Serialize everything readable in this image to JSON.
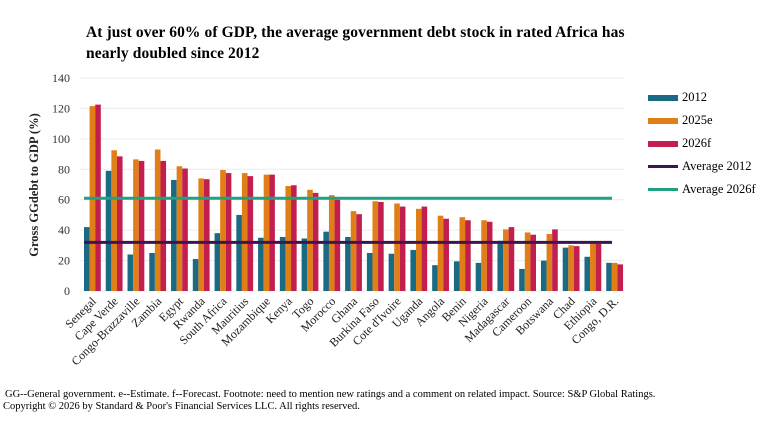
{
  "title": "At just over 60% of GDP, the average  government  debt stock  in rated Africa has nearly doubled  since  2012",
  "footnote": "GG--General government.  e--Estimate.  f--Forecast.  Footnote:  need to mention new ratings and a comment  on related  impact.  Source:  S&P Global Ratings.",
  "copyright": "Copyright © 2026 by Standard  & Poor's Financial Services LLC. All rights reserved.",
  "colors": {
    "s2012": "#1b6a84",
    "s2025e": "#e07f17",
    "s2026f": "#c21f4f",
    "avg2012": "#3d1650",
    "avg2026f": "#1fa182",
    "grid": "#ececec"
  },
  "chart_data": {
    "type": "bar",
    "title": "At just over 60% of GDP, the average government debt stock in rated Africa has nearly doubled since 2012",
    "xlabel": "",
    "ylabel": "Gross GGdebt to GDP (%)",
    "ylim": [
      0,
      140
    ],
    "yticks": [
      0,
      20,
      40,
      60,
      80,
      100,
      120,
      140
    ],
    "grid": true,
    "legend_position": "right",
    "categories": [
      "Senegal",
      "Cape Verde",
      "Congo-Brazzaville",
      "Zambia",
      "Egypt",
      "Rwanda",
      "South Africa",
      "Mauritius",
      "Mozambique",
      "Kenya",
      "Togo",
      "Morocco",
      "Ghana",
      "Burkina Faso",
      "Cote d'Ivoire",
      "Uganda",
      "Angola",
      "Benin",
      "Nigeria",
      "Madagascar",
      "Cameroon",
      "Botswana",
      "Chad",
      "Ethiopia",
      "Congo, D.R."
    ],
    "series": [
      {
        "name": "2012",
        "type": "bar",
        "values": [
          42,
          79,
          24,
          25,
          73,
          21,
          38,
          50,
          35,
          35.5,
          34.5,
          39,
          35.5,
          25,
          24.5,
          27,
          17,
          19.5,
          18.5,
          33,
          14.5,
          20,
          28.5,
          22.5,
          18.5
        ]
      },
      {
        "name": "2025e",
        "type": "bar",
        "values": [
          121.5,
          92.5,
          86.5,
          93,
          82,
          74,
          79.5,
          77.5,
          76.5,
          69,
          66.5,
          63,
          52.5,
          59,
          57.5,
          54,
          49.5,
          48.5,
          46.5,
          40.5,
          38.5,
          37.5,
          30,
          31.5,
          18.5
        ]
      },
      {
        "name": "2026f",
        "type": "bar",
        "values": [
          122.5,
          88.5,
          85.5,
          85.5,
          80.5,
          73.5,
          77.5,
          75.5,
          76.5,
          69.5,
          64.5,
          60,
          50.5,
          58.5,
          55.5,
          55.5,
          47.5,
          46.5,
          45.5,
          42,
          37,
          40.5,
          29.5,
          31,
          17.5
        ]
      },
      {
        "name": "Average  2012",
        "type": "line",
        "value": 32
      },
      {
        "name": "Average  2026f",
        "type": "line",
        "value": 61
      }
    ]
  }
}
